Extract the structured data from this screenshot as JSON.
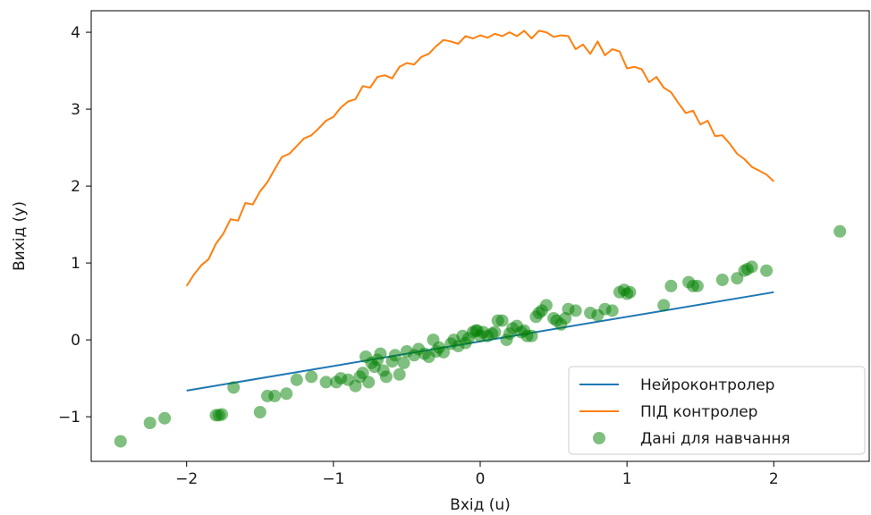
{
  "chart_data": {
    "type": "line",
    "title": "",
    "xlabel": "Вхід (u)",
    "ylabel": "Вихід (y)",
    "xlim": [
      -2.65,
      2.65
    ],
    "ylim": [
      -1.58,
      4.28
    ],
    "xticks": [
      -2,
      -1,
      0,
      1,
      2
    ],
    "xtick_labels": [
      "−2",
      "−1",
      "0",
      "1",
      "2"
    ],
    "yticks": [
      -1,
      0,
      1,
      2,
      3,
      4
    ],
    "ytick_labels": [
      "−1",
      "0",
      "1",
      "2",
      "3",
      "4"
    ],
    "grid": false,
    "legend_position": "lower-right",
    "series": [
      {
        "name": "Нейроконтролер",
        "kind": "line",
        "color": "#1f77b4",
        "x": [
          -2,
          2
        ],
        "y": [
          -0.66,
          0.62
        ]
      },
      {
        "name": "ПІД контролер",
        "kind": "line",
        "color": "#ff7f0e",
        "x": [
          -2.0,
          -1.95,
          -1.9,
          -1.85,
          -1.8,
          -1.75,
          -1.7,
          -1.65,
          -1.6,
          -1.55,
          -1.5,
          -1.45,
          -1.4,
          -1.35,
          -1.3,
          -1.25,
          -1.2,
          -1.15,
          -1.1,
          -1.05,
          -1.0,
          -0.95,
          -0.9,
          -0.85,
          -0.8,
          -0.75,
          -0.7,
          -0.65,
          -0.6,
          -0.55,
          -0.5,
          -0.45,
          -0.4,
          -0.35,
          -0.3,
          -0.25,
          -0.2,
          -0.15,
          -0.1,
          -0.05,
          0.0,
          0.05,
          0.1,
          0.15,
          0.2,
          0.25,
          0.3,
          0.35,
          0.4,
          0.45,
          0.5,
          0.55,
          0.6,
          0.65,
          0.7,
          0.75,
          0.8,
          0.85,
          0.9,
          0.95,
          1.0,
          1.05,
          1.1,
          1.15,
          1.2,
          1.25,
          1.3,
          1.35,
          1.4,
          1.45,
          1.5,
          1.55,
          1.6,
          1.65,
          1.7,
          1.75,
          1.8,
          1.85,
          1.9,
          1.95,
          2.0
        ],
        "y": [
          0.7,
          0.85,
          0.97,
          1.05,
          1.25,
          1.38,
          1.57,
          1.55,
          1.78,
          1.76,
          1.93,
          2.05,
          2.22,
          2.38,
          2.42,
          2.52,
          2.62,
          2.66,
          2.75,
          2.85,
          2.9,
          3.02,
          3.1,
          3.13,
          3.3,
          3.28,
          3.42,
          3.44,
          3.4,
          3.55,
          3.6,
          3.58,
          3.68,
          3.72,
          3.82,
          3.9,
          3.88,
          3.85,
          3.95,
          3.92,
          3.96,
          3.93,
          3.98,
          3.95,
          4.0,
          3.95,
          4.02,
          3.92,
          4.02,
          4.0,
          3.94,
          3.96,
          3.95,
          3.78,
          3.84,
          3.72,
          3.88,
          3.7,
          3.78,
          3.75,
          3.53,
          3.55,
          3.52,
          3.35,
          3.42,
          3.28,
          3.22,
          3.08,
          2.95,
          2.98,
          2.8,
          2.85,
          2.65,
          2.66,
          2.55,
          2.42,
          2.35,
          2.25,
          2.2,
          2.15,
          2.06
        ]
      },
      {
        "name": "Дані для навчання",
        "kind": "scatter",
        "color": "#008000",
        "alpha": 0.5,
        "x": [
          -2.45,
          -2.25,
          -2.15,
          -1.8,
          -1.78,
          -1.76,
          -1.68,
          -1.5,
          -1.45,
          -1.4,
          -1.32,
          -1.25,
          -1.15,
          -1.05,
          -0.98,
          -0.95,
          -0.9,
          -0.85,
          -0.82,
          -0.8,
          -0.78,
          -0.76,
          -0.74,
          -0.72,
          -0.7,
          -0.68,
          -0.66,
          -0.64,
          -0.6,
          -0.58,
          -0.55,
          -0.52,
          -0.5,
          -0.45,
          -0.42,
          -0.38,
          -0.35,
          -0.32,
          -0.3,
          -0.28,
          -0.25,
          -0.2,
          -0.18,
          -0.15,
          -0.12,
          -0.1,
          -0.08,
          -0.05,
          -0.03,
          -0.02,
          0.0,
          0.02,
          0.05,
          0.08,
          0.1,
          0.12,
          0.15,
          0.18,
          0.2,
          0.22,
          0.25,
          0.28,
          0.3,
          0.32,
          0.35,
          0.38,
          0.4,
          0.42,
          0.45,
          0.5,
          0.52,
          0.55,
          0.58,
          0.6,
          0.65,
          0.75,
          0.8,
          0.85,
          0.9,
          0.95,
          0.98,
          1.0,
          1.02,
          1.25,
          1.3,
          1.42,
          1.45,
          1.48,
          1.65,
          1.75,
          1.8,
          1.82,
          1.85,
          1.95,
          2.45
        ],
        "y": [
          -1.32,
          -1.08,
          -1.02,
          -0.98,
          -0.98,
          -0.97,
          -0.62,
          -0.94,
          -0.73,
          -0.73,
          -0.7,
          -0.52,
          -0.48,
          -0.55,
          -0.55,
          -0.5,
          -0.52,
          -0.6,
          -0.48,
          -0.43,
          -0.22,
          -0.55,
          -0.3,
          -0.35,
          -0.26,
          -0.18,
          -0.4,
          -0.48,
          -0.28,
          -0.2,
          -0.45,
          -0.3,
          -0.15,
          -0.2,
          -0.12,
          -0.18,
          -0.22,
          0.0,
          -0.15,
          -0.1,
          -0.16,
          -0.05,
          0.0,
          -0.08,
          0.05,
          -0.04,
          0.02,
          0.1,
          0.12,
          0.12,
          0.05,
          0.1,
          0.05,
          0.08,
          0.1,
          0.25,
          0.25,
          0.0,
          0.08,
          0.15,
          0.18,
          0.1,
          0.12,
          0.05,
          0.05,
          0.3,
          0.35,
          0.38,
          0.45,
          0.28,
          0.25,
          0.2,
          0.28,
          0.4,
          0.38,
          0.35,
          0.32,
          0.4,
          0.38,
          0.62,
          0.65,
          0.6,
          0.62,
          0.45,
          0.7,
          0.75,
          0.7,
          0.7,
          0.78,
          0.8,
          0.9,
          0.92,
          0.95,
          0.9,
          1.41
        ]
      }
    ]
  }
}
